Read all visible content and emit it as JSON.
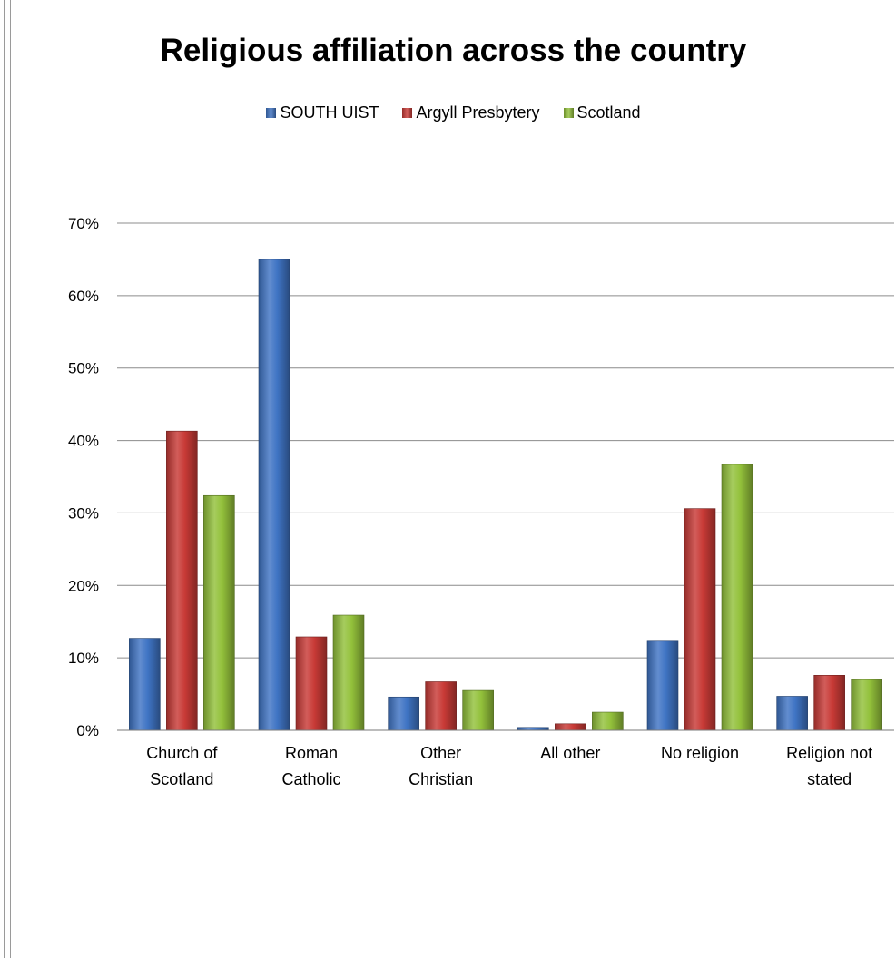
{
  "chart_data": {
    "type": "bar",
    "title": "Religious affiliation across the country",
    "categories": [
      [
        "Church of",
        "Scotland"
      ],
      [
        "Roman",
        "Catholic"
      ],
      [
        "Other",
        "Christian"
      ],
      [
        "All other"
      ],
      [
        "No religion"
      ],
      [
        "Religion not",
        "stated"
      ]
    ],
    "series": [
      {
        "name": "SOUTH UIST",
        "color": "#3f74c4",
        "values": [
          12.7,
          65.0,
          4.6,
          0.4,
          12.3,
          4.7
        ]
      },
      {
        "name": "Argyll Presbytery",
        "color": "#c83a36",
        "values": [
          41.3,
          12.9,
          6.7,
          0.9,
          30.6,
          7.6
        ]
      },
      {
        "name": "Scotland",
        "color": "#93c13b",
        "values": [
          32.4,
          15.9,
          5.5,
          2.5,
          36.7,
          7.0
        ]
      }
    ],
    "ylim": [
      0,
      70
    ],
    "yticks": [
      "0%",
      "10%",
      "20%",
      "30%",
      "40%",
      "50%",
      "60%",
      "70%"
    ],
    "grid": true,
    "legend_position": "top"
  }
}
